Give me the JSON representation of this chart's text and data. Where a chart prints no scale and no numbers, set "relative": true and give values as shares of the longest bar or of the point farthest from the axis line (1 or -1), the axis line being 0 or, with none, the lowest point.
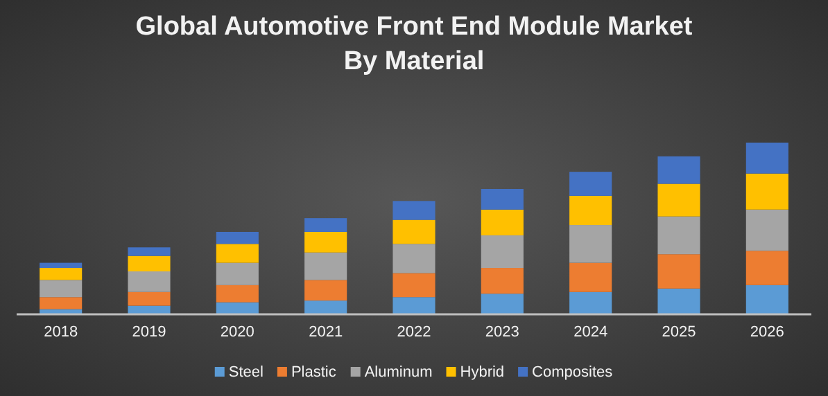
{
  "chart_data": {
    "type": "bar",
    "title": "Global Automotive Front End Module Market\nBy Material",
    "stacked": true,
    "relative": true,
    "legend": "bottom",
    "categories": [
      "2018",
      "2019",
      "2020",
      "2021",
      "2022",
      "2023",
      "2024",
      "2025",
      "2026"
    ],
    "series": [
      {
        "name": "Steel",
        "color": "#5b9bd5",
        "values": [
          0.03,
          0.05,
          0.07,
          0.08,
          0.1,
          0.12,
          0.13,
          0.15,
          0.17
        ]
      },
      {
        "name": "Plastic",
        "color": "#ed7d31",
        "values": [
          0.07,
          0.08,
          0.1,
          0.12,
          0.14,
          0.15,
          0.17,
          0.2,
          0.2
        ]
      },
      {
        "name": "Aluminum",
        "color": "#a5a5a5",
        "values": [
          0.1,
          0.12,
          0.13,
          0.16,
          0.17,
          0.19,
          0.22,
          0.22,
          0.24
        ]
      },
      {
        "name": "Hybrid",
        "color": "#ffc000",
        "values": [
          0.07,
          0.09,
          0.11,
          0.12,
          0.14,
          0.15,
          0.17,
          0.19,
          0.21
        ]
      },
      {
        "name": "Composites",
        "color": "#4472c4",
        "values": [
          0.03,
          0.05,
          0.07,
          0.08,
          0.11,
          0.12,
          0.14,
          0.16,
          0.18
        ]
      }
    ]
  }
}
